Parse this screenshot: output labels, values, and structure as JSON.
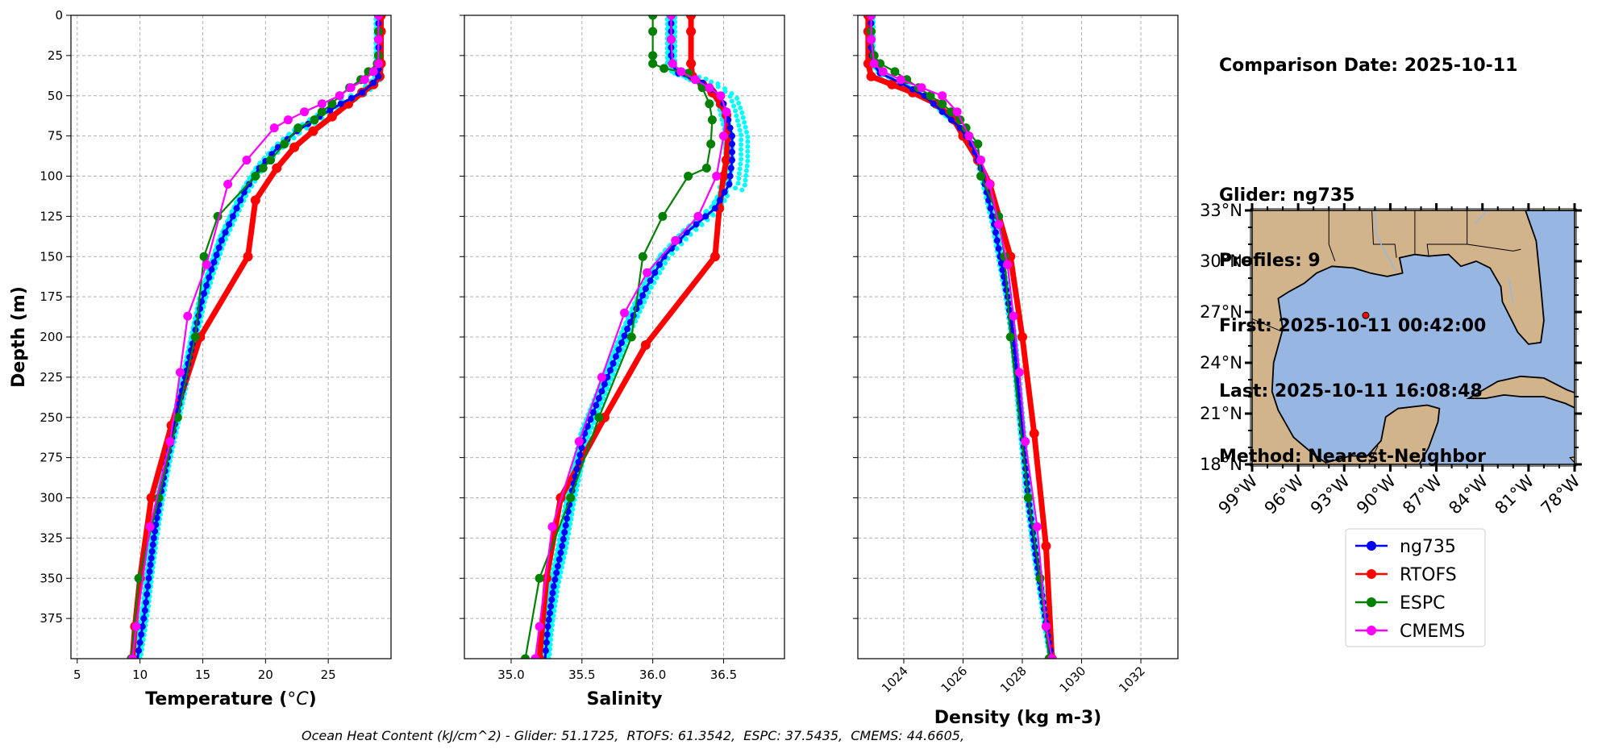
{
  "info": {
    "comparison": "Comparison Date: 2025-10-11",
    "glider": "Glider: ng735",
    "profiles": "Profiles: 9",
    "first": "First: 2025-10-11 00:42:00",
    "last": "Last: 2025-10-11 16:08:48",
    "method": "Method: Nearest-Neighbor"
  },
  "footer": "Ocean Heat Content (kJ/cm^2) - Glider: 51.1725,  RTOFS: 61.3542,  ESPC: 37.5435,  CMEMS: 44.6605,",
  "colors": {
    "ng735": "#0000ff",
    "ng735_scatter": "#00ffff",
    "RTOFS": "#ff0000",
    "ESPC": "#008000",
    "CMEMS": "#ff00ff",
    "land": "#d2b48c",
    "ocean": "#97b6e1"
  },
  "legend": [
    "ng735",
    "RTOFS",
    "ESPC",
    "CMEMS"
  ],
  "chart_data": [
    {
      "type": "line",
      "xlabel": "Temperature (°C)",
      "ylabel": "Depth (m)",
      "xlim": [
        4.5,
        30
      ],
      "ylim": [
        400,
        0
      ],
      "xticks": [
        5,
        10,
        15,
        20,
        25
      ],
      "yticks": [
        0,
        25,
        50,
        75,
        100,
        125,
        150,
        175,
        200,
        225,
        250,
        275,
        300,
        325,
        350,
        375
      ],
      "grid": true,
      "series": [
        {
          "name": "ng735",
          "x": [
            29,
            29,
            29,
            28.6,
            27.7,
            26,
            24.3,
            22.5,
            21,
            19.5,
            18.3,
            17.4,
            16.5,
            15.7,
            14.9,
            14.3,
            13.6,
            12.9,
            12.2,
            11.6,
            11.1,
            10.7,
            10.4,
            10.1,
            9.9,
            9.8
          ],
          "y": [
            0,
            20,
            38,
            42,
            48,
            55,
            63,
            72,
            82,
            95,
            110,
            125,
            140,
            158,
            178,
            200,
            225,
            250,
            275,
            300,
            325,
            350,
            370,
            385,
            395,
            400
          ]
        },
        {
          "name": "RTOFS",
          "x": [
            29.2,
            29.2,
            29.2,
            29.1,
            28.6,
            27.7,
            26.6,
            25.3,
            23.8,
            22.3,
            20.9,
            19.2,
            18.6,
            14.8,
            12.5,
            10.9,
            10.0,
            9.6,
            9.4
          ],
          "y": [
            0,
            10,
            30,
            38,
            43,
            48,
            55,
            63,
            72,
            82,
            95,
            115,
            150,
            200,
            255,
            300,
            350,
            380,
            400
          ]
        },
        {
          "name": "ESPC",
          "x": [
            29,
            29,
            29,
            28.9,
            28.2,
            27.6,
            26.7,
            25.9,
            25.3,
            24.5,
            23.9,
            22.6,
            21.5,
            20.4,
            19.8,
            19.2,
            16.2,
            15.1,
            14.4,
            13.0,
            11.5,
            9.9,
            9.3
          ],
          "y": [
            0,
            10,
            25,
            30,
            35,
            40,
            45,
            50,
            55,
            60,
            65,
            70,
            80,
            90,
            95,
            100,
            125,
            150,
            200,
            250,
            300,
            350,
            400
          ]
        },
        {
          "name": "CMEMS",
          "x": [
            29,
            29,
            29,
            28.6,
            27.9,
            26.8,
            25.9,
            24.5,
            23.1,
            21.8,
            20.7,
            18.5,
            17.0,
            15.3,
            13.8,
            13.2,
            12.4,
            10.8,
            9.7,
            9.4
          ],
          "y": [
            0,
            15,
            30,
            35,
            40,
            45,
            50,
            55,
            60,
            65,
            70,
            90,
            105,
            155,
            187,
            222,
            265,
            318,
            380,
            400
          ]
        }
      ]
    },
    {
      "type": "line",
      "xlabel": "Salinity",
      "ylabel": "",
      "xlim": [
        34.67,
        36.93
      ],
      "ylim": [
        400,
        0
      ],
      "xticks": [
        35.0,
        35.5,
        36.0,
        36.5
      ],
      "grid": true,
      "series": [
        {
          "name": "ng735",
          "x": [
            36.13,
            36.13,
            36.13,
            36.18,
            36.35,
            36.48,
            36.52,
            36.56,
            36.56,
            36.54,
            36.44,
            36.24,
            36.08,
            35.95,
            35.82,
            35.68,
            35.52,
            35.42,
            35.36,
            35.3,
            35.26,
            35.24
          ],
          "y": [
            0,
            20,
            30,
            36,
            42,
            50,
            60,
            75,
            90,
            105,
            120,
            135,
            150,
            170,
            195,
            225,
            260,
            300,
            330,
            355,
            380,
            400
          ]
        },
        {
          "name": "RTOFS",
          "x": [
            36.27,
            36.27,
            36.27,
            36.28,
            36.35,
            36.42,
            36.48,
            36.52,
            36.53,
            36.52,
            36.5,
            36.47,
            36.44,
            35.95,
            35.66,
            35.35,
            35.25,
            35.2
          ],
          "y": [
            0,
            10,
            30,
            38,
            43,
            48,
            55,
            62,
            75,
            90,
            100,
            120,
            150,
            205,
            250,
            300,
            350,
            400
          ]
        },
        {
          "name": "ESPC",
          "x": [
            36.0,
            36.0,
            36.0,
            36.0,
            36.08,
            36.25,
            36.35,
            36.4,
            36.42,
            36.41,
            36.38,
            36.25,
            36.07,
            35.93,
            35.85,
            35.62,
            35.42,
            35.2,
            35.1
          ],
          "y": [
            0,
            10,
            25,
            30,
            33,
            36,
            45,
            55,
            65,
            80,
            95,
            100,
            125,
            150,
            200,
            250,
            300,
            350,
            400
          ]
        },
        {
          "name": "CMEMS",
          "x": [
            36.13,
            36.13,
            36.14,
            36.2,
            36.3,
            36.4,
            36.48,
            36.52,
            36.5,
            36.45,
            36.32,
            36.16,
            35.96,
            35.8,
            35.64,
            35.48,
            35.29,
            35.2,
            35.17
          ],
          "y": [
            0,
            15,
            30,
            35,
            40,
            45,
            50,
            60,
            75,
            100,
            125,
            140,
            160,
            185,
            225,
            265,
            318,
            380,
            400
          ]
        }
      ]
    },
    {
      "type": "line",
      "xlabel": "Density (kg m-3)",
      "ylabel": "",
      "xlim": [
        1022.45,
        1033.25
      ],
      "ylim": [
        400,
        0
      ],
      "xticks": [
        1024,
        1026,
        1028,
        1030,
        1032
      ],
      "grid": true,
      "series": [
        {
          "name": "ng735",
          "x": [
            1022.9,
            1022.9,
            1022.95,
            1023.2,
            1023.9,
            1024.7,
            1025.3,
            1025.9,
            1026.3,
            1026.6,
            1026.8,
            1027.05,
            1027.25,
            1027.5,
            1027.7,
            1027.95,
            1028.2,
            1028.45,
            1028.7,
            1028.9,
            1029.0
          ],
          "y": [
            0,
            20,
            30,
            36,
            42,
            50,
            60,
            70,
            80,
            95,
            110,
            130,
            150,
            175,
            200,
            250,
            300,
            335,
            365,
            390,
            400
          ]
        },
        {
          "name": "RTOFS",
          "x": [
            1022.8,
            1022.8,
            1022.8,
            1022.9,
            1023.6,
            1024.3,
            1025.1,
            1025.7,
            1026.0,
            1026.5,
            1026.9,
            1027.6,
            1028.0,
            1028.4,
            1028.8,
            1029.0
          ],
          "y": [
            0,
            10,
            30,
            38,
            43,
            48,
            55,
            65,
            75,
            90,
            105,
            150,
            200,
            260,
            330,
            400
          ]
        },
        {
          "name": "ESPC",
          "x": [
            1022.9,
            1022.9,
            1023.0,
            1023.2,
            1023.7,
            1024.1,
            1024.5,
            1024.9,
            1025.3,
            1025.6,
            1025.9,
            1026.1,
            1026.5,
            1026.6,
            1027.2,
            1027.4,
            1027.6,
            1028.2,
            1028.6,
            1028.9
          ],
          "y": [
            0,
            10,
            25,
            30,
            35,
            40,
            45,
            50,
            55,
            60,
            65,
            70,
            80,
            100,
            125,
            150,
            200,
            300,
            350,
            400
          ]
        },
        {
          "name": "CMEMS",
          "x": [
            1022.9,
            1022.9,
            1023.0,
            1023.3,
            1023.9,
            1024.6,
            1025.3,
            1025.8,
            1026.2,
            1026.6,
            1026.9,
            1027.2,
            1027.5,
            1027.7,
            1027.9,
            1028.1,
            1028.5,
            1028.8,
            1029.0
          ],
          "y": [
            0,
            15,
            30,
            35,
            40,
            45,
            50,
            60,
            75,
            90,
            105,
            130,
            155,
            187,
            222,
            265,
            318,
            380,
            400
          ]
        }
      ]
    }
  ],
  "map": {
    "lat_ticks": [
      "33°N",
      "30°N",
      "27°N",
      "24°N",
      "21°N",
      "18°N"
    ],
    "lon_ticks": [
      "99°W",
      "96°W",
      "93°W",
      "90°W",
      "87°W",
      "84°W",
      "81°W",
      "78°W"
    ],
    "glider_position": {
      "lon": -91.6,
      "lat": 26.8
    }
  }
}
